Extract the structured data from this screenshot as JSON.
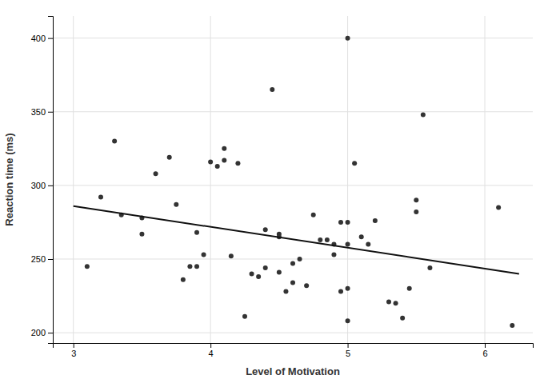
{
  "chart_data": {
    "type": "scatter",
    "xlabel": "Level of Motivation",
    "ylabel": "Reaction time (ms)",
    "xlim": [
      2.85,
      6.35
    ],
    "ylim": [
      193,
      415
    ],
    "xticks": [
      3,
      4,
      5,
      6
    ],
    "yticks": [
      200,
      250,
      300,
      350,
      400
    ],
    "grid": true,
    "series": [
      {
        "type": "scatter",
        "color": "#333333",
        "x": [
          3.1,
          3.2,
          3.3,
          3.35,
          3.5,
          3.5,
          3.6,
          3.7,
          3.75,
          3.8,
          3.85,
          3.9,
          3.9,
          3.95,
          4.0,
          4.05,
          4.1,
          4.1,
          4.15,
          4.2,
          4.25,
          4.3,
          4.35,
          4.4,
          4.4,
          4.45,
          4.5,
          4.5,
          4.5,
          4.55,
          4.6,
          4.6,
          4.65,
          4.7,
          4.75,
          4.8,
          4.85,
          4.9,
          4.9,
          4.95,
          4.95,
          5.0,
          5.0,
          5.0,
          5.0,
          5.0,
          5.05,
          5.1,
          5.15,
          5.2,
          5.3,
          5.35,
          5.4,
          5.45,
          5.5,
          5.5,
          5.55,
          5.6,
          6.1,
          6.2
        ],
        "values": [
          245,
          292,
          330,
          280,
          278,
          267,
          308,
          319,
          287,
          236,
          245,
          245,
          268,
          253,
          316,
          313,
          317,
          325,
          252,
          315,
          211,
          240,
          238,
          270,
          244,
          365,
          267,
          241,
          265,
          228,
          234,
          247,
          250,
          232,
          280,
          263,
          263,
          260,
          253,
          228,
          275,
          400,
          230,
          208,
          260,
          275,
          315,
          265,
          260,
          276,
          221,
          220,
          210,
          230,
          290,
          282,
          348,
          244,
          285,
          205
        ]
      },
      {
        "type": "line",
        "color": "#111111",
        "x": [
          3.0,
          6.25
        ],
        "values": [
          286,
          240
        ]
      }
    ]
  }
}
